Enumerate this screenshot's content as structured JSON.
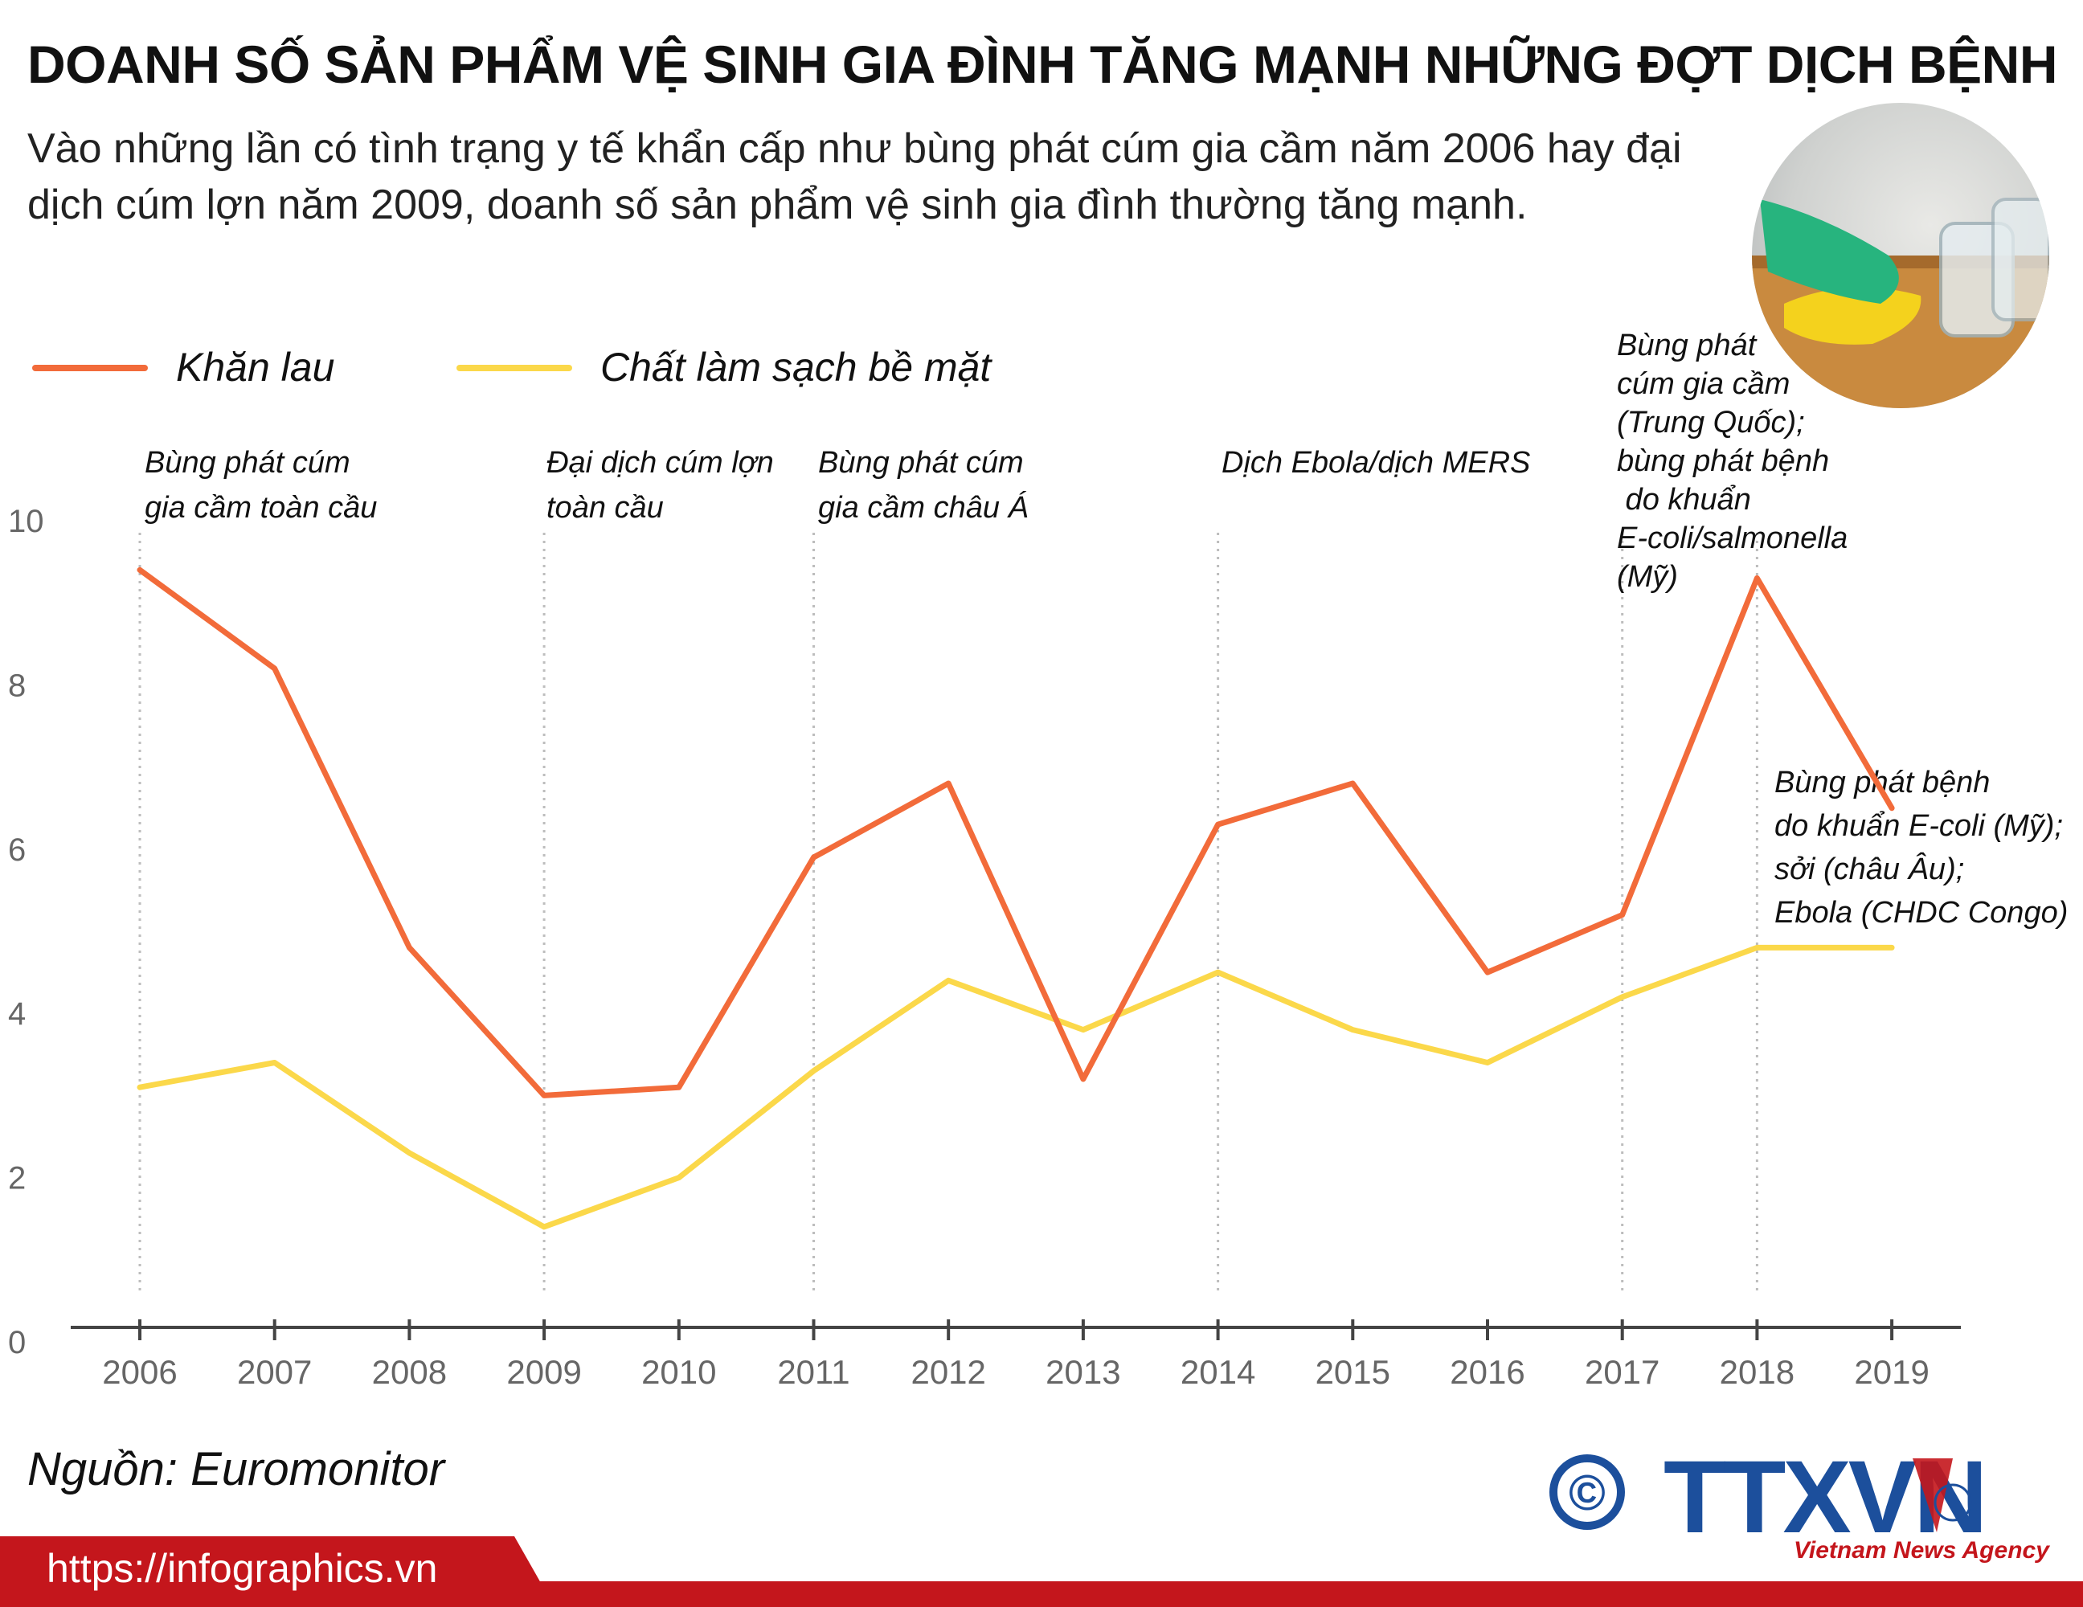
{
  "header": {
    "title": "DOANH SỐ SẢN PHẨM VỆ SINH GIA ĐÌNH TĂNG MẠNH NHỮNG ĐỢT DỊCH BỆNH",
    "subtitle": "Vào những lần có tình trạng y tế khẩn cấp như bùng phát cúm gia cầm năm 2006 hay đại dịch cúm lợn năm 2009, doanh số sản phẩm vệ sinh gia đình thường tăng mạnh."
  },
  "photo": {
    "icon": "cleaning-photo-icon"
  },
  "chart_data": {
    "type": "line",
    "x": [
      2006,
      2007,
      2008,
      2009,
      2010,
      2011,
      2012,
      2013,
      2014,
      2015,
      2016,
      2017,
      2018,
      2019
    ],
    "x_tick_labels": [
      "2006",
      "2007",
      "2008",
      "2009",
      "2010",
      "2011",
      "2012",
      "2013",
      "2014",
      "2015",
      "2016",
      "2017",
      "2018",
      "2019"
    ],
    "y_tick_labels": [
      "0",
      "2",
      "4",
      "6",
      "8",
      "10"
    ],
    "ylim": [
      0,
      10
    ],
    "legend_position": "top-left",
    "series": [
      {
        "name": "Khăn lau",
        "color": "#f26b3a",
        "values": [
          9.4,
          8.2,
          4.8,
          3.0,
          3.1,
          5.9,
          6.8,
          3.2,
          6.3,
          6.8,
          4.5,
          5.2,
          9.3,
          6.5
        ]
      },
      {
        "name": "Chất làm sạch bề mặt",
        "color": "#fbd84a",
        "values": [
          3.1,
          3.4,
          2.3,
          1.4,
          2.0,
          3.3,
          4.4,
          3.8,
          4.5,
          3.8,
          3.4,
          4.2,
          4.8,
          4.8
        ]
      }
    ],
    "annotations": [
      {
        "x": 2006,
        "lines": [
          "Bùng phát cúm",
          "gia cầm toàn cầu"
        ]
      },
      {
        "x": 2009,
        "lines": [
          "Đại dịch cúm lợn",
          "toàn cầu"
        ]
      },
      {
        "x": 2011,
        "lines": [
          "Bùng phát cúm",
          "gia cầm châu Á"
        ]
      },
      {
        "x": 2014,
        "lines": [
          "Dịch Ebola/dịch MERS"
        ]
      },
      {
        "x": 2017,
        "lines": [
          "Bùng phát",
          "cúm gia cầm",
          "(Trung Quốc);",
          "bùng phát bệnh",
          " do khuẩn",
          "E-coli/salmonella",
          "(Mỹ)"
        ]
      },
      {
        "x": 2019,
        "lines": [
          "Bùng phát bệnh",
          "do khuẩn E-coli (Mỹ);",
          "sởi (châu Âu);",
          "Ebola (CHDC Congo)"
        ]
      }
    ],
    "dashed_guides_at": [
      2006,
      2009,
      2011,
      2014,
      2017,
      2018
    ]
  },
  "footer": {
    "source": "Nguồn: Euromonitor",
    "url": "https://infographics.vn",
    "logo_text": "TTXVN",
    "logo_sub": "Vietnam News Agency",
    "copyright_symbol": "©",
    "bar_color": "#c4161c",
    "logo_color": "#1c4f9c"
  }
}
